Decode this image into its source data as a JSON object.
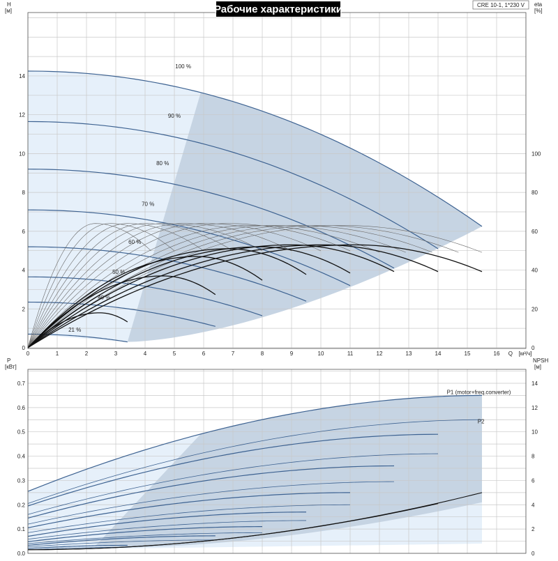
{
  "title": "Рабочие характеристики",
  "model": "CRE 10-1, 1*230 V",
  "colors": {
    "curve": "#3d6291",
    "curve_eta": "#111111",
    "curve_thin": "#666666",
    "fill_light": "#e6f0fa",
    "fill_dark": "#c6d4e3"
  },
  "chart_data": [
    {
      "type": "line",
      "panel": "top",
      "ylabel": "H",
      "yunit": "[м]",
      "xlabel": "Q",
      "xunit": "[м³/ч]",
      "xlim": [
        0,
        16
      ],
      "ylim": [
        0,
        15
      ],
      "x_ticks": [
        "0",
        "1",
        "2",
        "3",
        "4",
        "5",
        "6",
        "7",
        "8",
        "9",
        "10",
        "11",
        "12",
        "13",
        "14",
        "15",
        "16"
      ],
      "y_ticks": [
        "0",
        "2",
        "4",
        "6",
        "8",
        "10",
        "12",
        "14"
      ],
      "right_axis_label": "eta",
      "right_axis_unit": "[%]",
      "right_ticks": [
        "0",
        "20",
        "40",
        "60",
        "80",
        "100"
      ],
      "right_range": [
        0,
        150
      ],
      "grid": true,
      "speed_labels": [
        "100 %",
        "90 %",
        "80 %",
        "70 %",
        "60 %",
        "50 %",
        "40 %",
        "21 %"
      ],
      "head_curves": [
        {
          "label": "100 %",
          "qmax": 15.5,
          "h0": 14.25,
          "hend": 6.25
        },
        {
          "label": "90 %",
          "qmax": 14.0,
          "h0": 11.65,
          "hend": 5.1
        },
        {
          "label": "80 %",
          "qmax": 12.5,
          "h0": 9.2,
          "hend": 4.1
        },
        {
          "label": "70 %",
          "qmax": 11.0,
          "h0": 7.1,
          "hend": 3.2
        },
        {
          "label": "60 %",
          "qmax": 9.5,
          "h0": 5.2,
          "hend": 2.4
        },
        {
          "label": "50 %",
          "qmax": 8.0,
          "h0": 3.65,
          "hend": 1.65
        },
        {
          "label": "40 %",
          "qmax": 6.4,
          "h0": 2.35,
          "hend": 1.1
        },
        {
          "label": "21 %",
          "qmax": 3.4,
          "h0": 0.7,
          "hend": 0.3
        }
      ],
      "eta_curves": [
        {
          "qmax": 15.5,
          "peak": 53
        },
        {
          "qmax": 14.0,
          "peak": 53
        },
        {
          "qmax": 12.5,
          "peak": 53
        },
        {
          "qmax": 11.0,
          "peak": 52
        },
        {
          "qmax": 9.5,
          "peak": 51
        },
        {
          "qmax": 8.0,
          "peak": 47
        },
        {
          "qmax": 6.4,
          "peak": 37
        },
        {
          "qmax": 3.4,
          "peak": 18
        }
      ],
      "eta_thin_curves": [
        {
          "qmax": 15.5,
          "peak": 63,
          "qpeak": 10.8
        },
        {
          "qmax": 14.7,
          "peak": 63,
          "qpeak": 10.0
        },
        {
          "qmax": 13.8,
          "peak": 63,
          "qpeak": 9.2
        },
        {
          "qmax": 12.9,
          "peak": 63,
          "qpeak": 8.4
        },
        {
          "qmax": 12.0,
          "peak": 63,
          "qpeak": 7.6
        },
        {
          "qmax": 11.0,
          "peak": 64,
          "qpeak": 6.8
        },
        {
          "qmax": 10.0,
          "peak": 64,
          "qpeak": 6.0
        },
        {
          "qmax": 9.0,
          "peak": 64,
          "qpeak": 5.3
        },
        {
          "qmax": 8.0,
          "peak": 64,
          "qpeak": 4.6
        },
        {
          "qmax": 7.0,
          "peak": 64,
          "qpeak": 4.0
        },
        {
          "qmax": 6.0,
          "peak": 64,
          "qpeak": 3.4
        },
        {
          "qmax": 5.0,
          "peak": 64,
          "qpeak": 2.8
        },
        {
          "qmax": 4.2,
          "peak": 64,
          "qpeak": 2.3
        }
      ]
    },
    {
      "type": "line",
      "panel": "bottom",
      "ylabel": "P",
      "yunit": "[кВт]",
      "xlim": [
        0,
        16
      ],
      "ylim": [
        0,
        0.75
      ],
      "y_ticks": [
        "0.0",
        "0.1",
        "0.2",
        "0.3",
        "0.4",
        "0.5",
        "0.6",
        "0.7"
      ],
      "right_axis_label": "NPSH",
      "right_axis_unit": "[м]",
      "right_ticks": [
        "0",
        "2",
        "4",
        "6",
        "8",
        "10",
        "12",
        "14"
      ],
      "right_range": [
        0,
        15
      ],
      "grid": true,
      "series_labels": [
        "P1 (motor+freq.converter)",
        "P2"
      ],
      "p1_curves": [
        {
          "qmax": 15.5,
          "p0": 0.255,
          "pend": 0.65
        },
        {
          "qmax": 14.0,
          "p0": 0.195,
          "pend": 0.49
        },
        {
          "qmax": 12.5,
          "p0": 0.145,
          "pend": 0.36
        },
        {
          "qmax": 11.0,
          "p0": 0.105,
          "pend": 0.25
        },
        {
          "qmax": 9.5,
          "p0": 0.07,
          "pend": 0.17
        },
        {
          "qmax": 8.0,
          "p0": 0.048,
          "pend": 0.11
        },
        {
          "qmax": 6.4,
          "p0": 0.033,
          "pend": 0.072
        },
        {
          "qmax": 3.4,
          "p0": 0.02,
          "pend": 0.033
        }
      ],
      "p2_curves": [
        {
          "qmax": 15.5,
          "p0": 0.205,
          "pend": 0.55
        },
        {
          "qmax": 14.0,
          "p0": 0.16,
          "pend": 0.41
        },
        {
          "qmax": 12.5,
          "p0": 0.12,
          "pend": 0.295
        },
        {
          "qmax": 11.0,
          "p0": 0.085,
          "pend": 0.2
        },
        {
          "qmax": 9.5,
          "p0": 0.058,
          "pend": 0.135
        },
        {
          "qmax": 8.0,
          "p0": 0.04,
          "pend": 0.085
        },
        {
          "qmax": 6.4,
          "p0": 0.027,
          "pend": 0.055
        },
        {
          "qmax": 3.4,
          "p0": 0.015,
          "pend": 0.025
        }
      ],
      "npsh_curves": [
        {
          "qmax": 15.5,
          "npsh_end": 5.0
        },
        {
          "qmax": 14.0,
          "npsh_end": 4.1
        }
      ]
    }
  ]
}
